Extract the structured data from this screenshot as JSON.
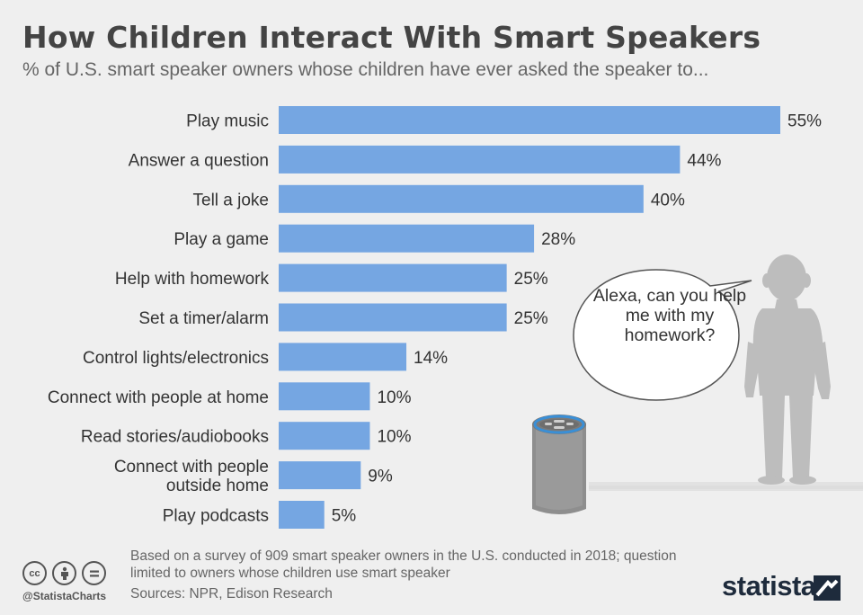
{
  "title": "How Children Interact With Smart Speakers",
  "subtitle": "% of U.S. smart speaker owners whose children have ever asked the speaker to...",
  "chart_data": {
    "type": "bar",
    "orientation": "horizontal",
    "categories": [
      "Play music",
      "Answer a question",
      "Tell a joke",
      "Play a game",
      "Help with homework",
      "Set a timer/alarm",
      "Control lights/electronics",
      "Connect with people at home",
      "Read stories/audiobooks",
      "Connect with people outside home",
      "Play podcasts"
    ],
    "category_lines": [
      [
        "Play music"
      ],
      [
        "Answer a question"
      ],
      [
        "Tell a joke"
      ],
      [
        "Play a game"
      ],
      [
        "Help with homework"
      ],
      [
        "Set a timer/alarm"
      ],
      [
        "Control lights/electronics"
      ],
      [
        "Connect with people at home"
      ],
      [
        "Read stories/audiobooks"
      ],
      [
        "Connect with people",
        "outside home"
      ],
      [
        "Play podcasts"
      ]
    ],
    "values": [
      55,
      44,
      40,
      28,
      25,
      25,
      14,
      10,
      10,
      9,
      5
    ],
    "value_labels": [
      "55%",
      "44%",
      "40%",
      "28%",
      "25%",
      "25%",
      "14%",
      "10%",
      "10%",
      "9%",
      "5%"
    ],
    "bar_color": "#75a6e2",
    "xlim": [
      0,
      55
    ],
    "grid": false,
    "legend": "none"
  },
  "illustration": {
    "speech_bubble": "Alexa, can you help me with my homework?"
  },
  "footer": {
    "note": "Based on a survey of 909 smart speaker owners in the U.S. conducted in 2018; question limited to owners whose children use smart speaker",
    "sources": "Sources: NPR, Edison Research",
    "handle": "@StatistaCharts",
    "brand": "statista"
  },
  "colors": {
    "background": "#efefef",
    "bar": "#75a6e2",
    "silhouette": "#bdbdbd",
    "brand": "#1e2b3c"
  }
}
